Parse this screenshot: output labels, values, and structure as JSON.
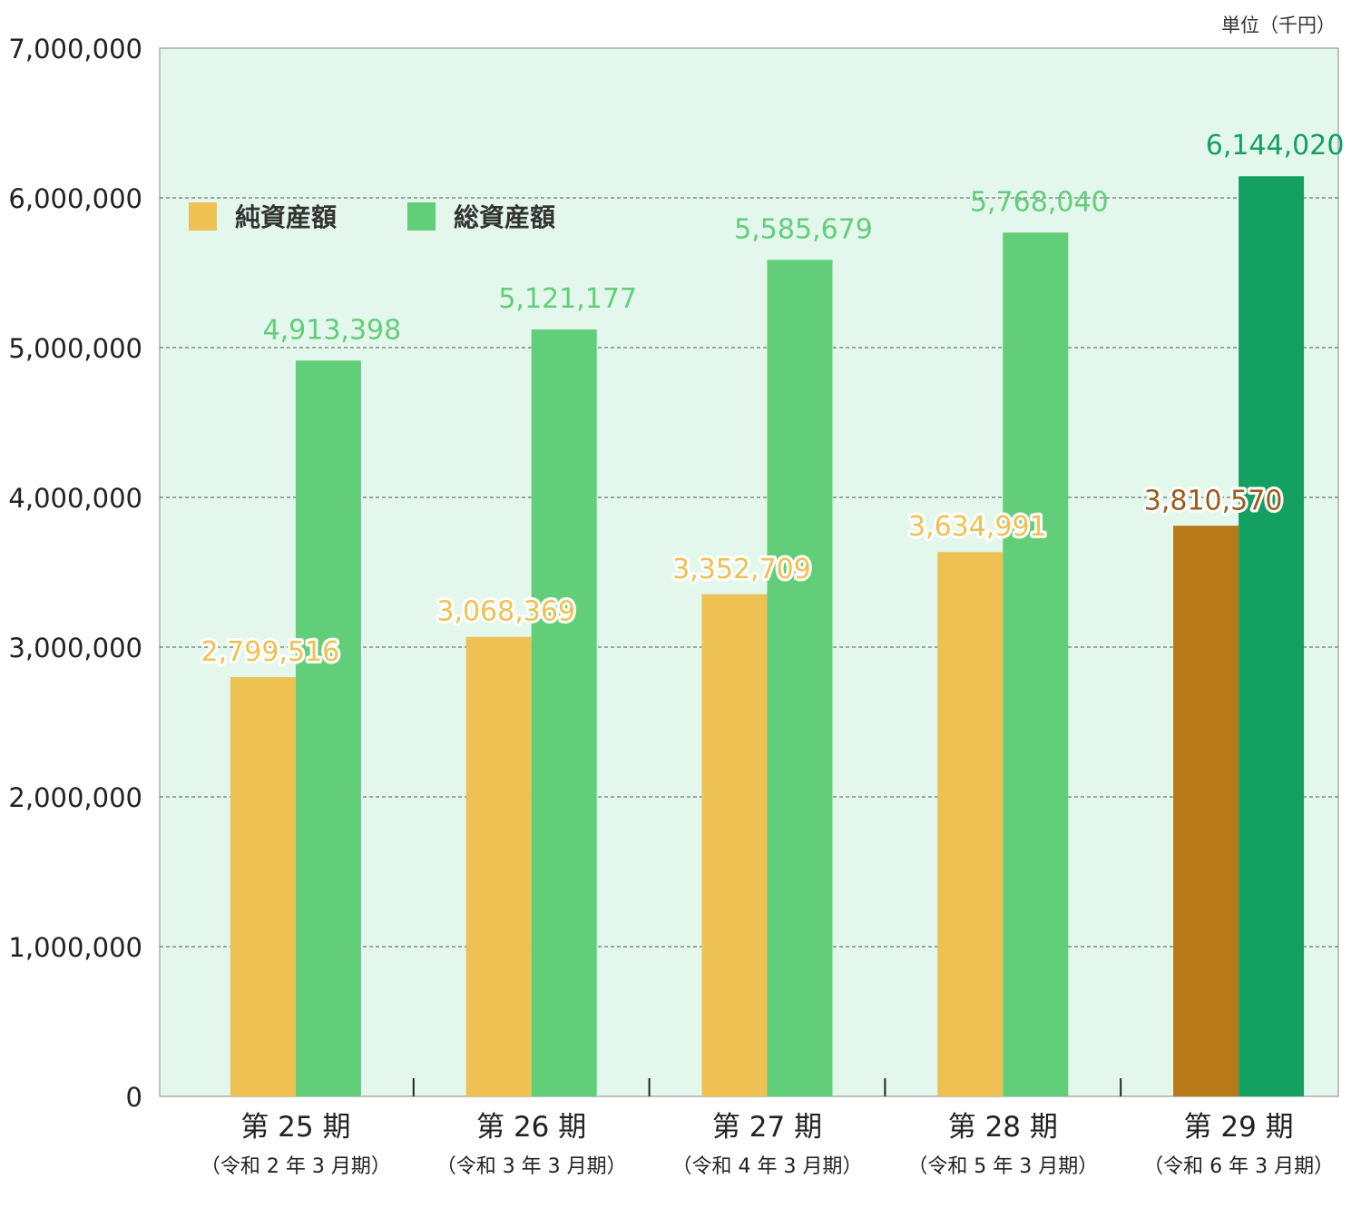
{
  "unit_label": "単位（千円）",
  "legend": {
    "net": {
      "label": "純資産額",
      "color": "#EDC152"
    },
    "total": {
      "label": "総資産額",
      "color": "#62CE79"
    }
  },
  "highlight": {
    "net": "#B77A16",
    "total": "#13A061",
    "net_label_color": "#9A5C1C"
  },
  "chart_data": {
    "type": "bar",
    "categories": [
      "第 25 期",
      "第 26 期",
      "第 27 期",
      "第 28 期",
      "第 29 期"
    ],
    "subcategories": [
      "（令和 2 年 3 月期）",
      "（令和 3 年 3 月期）",
      "（令和 4 年 3 月期）",
      "（令和 5 年 3 月期）",
      "（令和 6 年 3 月期）"
    ],
    "series": [
      {
        "name": "純資産額",
        "values": [
          2799516,
          3068369,
          3352709,
          3634991,
          3810570
        ],
        "labels": [
          "2,799,516",
          "3,068,369",
          "3,352,709",
          "3,634,991",
          "3,810,570"
        ]
      },
      {
        "name": "総資産額",
        "values": [
          4913398,
          5121177,
          5585679,
          5768040,
          6144020
        ],
        "labels": [
          "4,913,398",
          "5,121,177",
          "5,585,679",
          "5,768,040",
          "6,144,020"
        ]
      }
    ],
    "ylim": [
      0,
      7000000
    ],
    "yticks": [
      0,
      1000000,
      2000000,
      3000000,
      4000000,
      5000000,
      6000000,
      7000000
    ],
    "ytick_labels": [
      "0",
      "1,000,000",
      "2,000,000",
      "3,000,000",
      "4,000,000",
      "5,000,000",
      "6,000,000",
      "7,000,000"
    ],
    "grid": true,
    "legend_position": "top-left",
    "highlighted_category": "第 29 期"
  }
}
